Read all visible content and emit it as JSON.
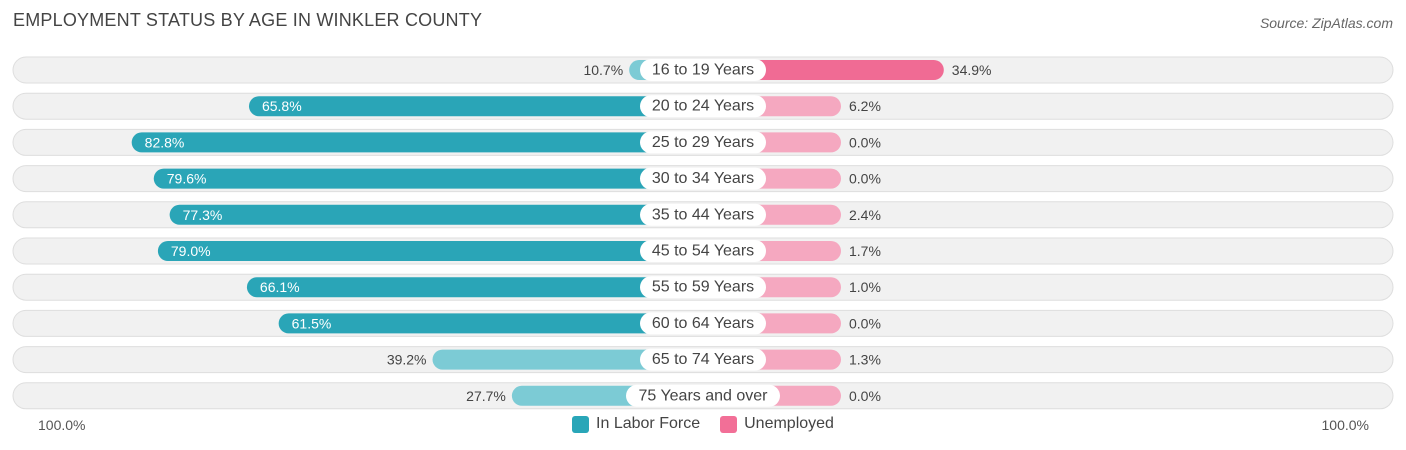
{
  "title": "EMPLOYMENT STATUS BY AGE IN WINKLER COUNTY",
  "source": "Source: ZipAtlas.com",
  "axis": {
    "left_label": "100.0%",
    "right_label": "100.0%"
  },
  "legend": [
    {
      "label": "In Labor Force",
      "color": "#29a6b8"
    },
    {
      "label": "Unemployed",
      "color": "#f26f97"
    }
  ],
  "chart_data": {
    "type": "bar",
    "orientation": "horizontal-diverging",
    "title": "EMPLOYMENT STATUS BY AGE IN WINKLER COUNTY",
    "categories": [
      "16 to 19 Years",
      "20 to 24 Years",
      "25 to 29 Years",
      "30 to 34 Years",
      "35 to 44 Years",
      "45 to 54 Years",
      "55 to 59 Years",
      "60 to 64 Years",
      "65 to 74 Years",
      "75 Years and over"
    ],
    "series": [
      {
        "name": "In Labor Force",
        "values": [
          10.7,
          65.8,
          82.8,
          79.6,
          77.3,
          79.0,
          66.1,
          61.5,
          39.2,
          27.7
        ],
        "labels": [
          "10.7%",
          "65.8%",
          "82.8%",
          "79.6%",
          "77.3%",
          "79.0%",
          "66.1%",
          "61.5%",
          "39.2%",
          "27.7%"
        ]
      },
      {
        "name": "Unemployed",
        "values": [
          34.9,
          6.2,
          0.0,
          0.0,
          2.4,
          1.7,
          1.0,
          0.0,
          1.3,
          0.0
        ],
        "labels": [
          "34.9%",
          "6.2%",
          "0.0%",
          "0.0%",
          "2.4%",
          "1.7%",
          "1.0%",
          "0.0%",
          "1.3%",
          "0.0%"
        ]
      }
    ],
    "xlim": [
      -100,
      100
    ],
    "x_tick_labels": [
      "100.0%",
      "100.0%"
    ]
  }
}
